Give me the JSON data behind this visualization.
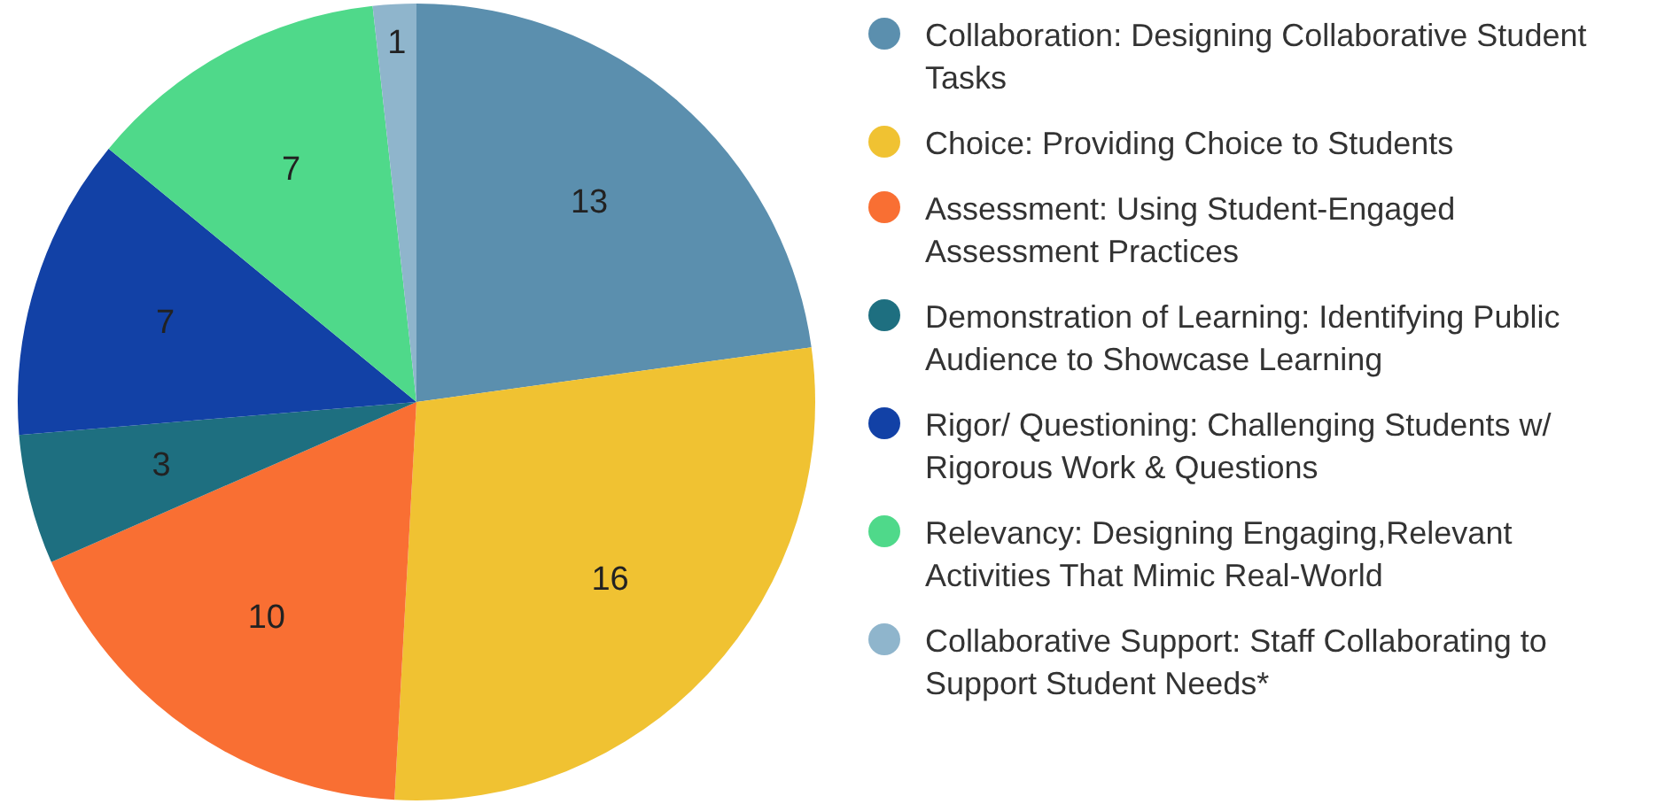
{
  "chart_data": {
    "type": "pie",
    "categories": [
      "Collaboration: Designing Collaborative Student Tasks",
      "Choice: Providing Choice to Students",
      "Assessment: Using Student-Engaged Assessment Practices",
      "Demonstration of Learning: Identifying Public Audience to Showcase Learning",
      "Rigor/ Questioning: Challenging Students w/ Rigorous Work & Questions",
      "Relevancy: Designing Engaging,Relevant Activities That Mimic Real-World",
      "Collaborative Support: Staff Collaborating to Support Student Needs*"
    ],
    "values": [
      13,
      16,
      10,
      3,
      7,
      7,
      1
    ],
    "colors": [
      "#5b8fae",
      "#f0c232",
      "#f96f33",
      "#1e6f80",
      "#1241a6",
      "#4fd98a",
      "#8fb5cc"
    ],
    "data_labels": true,
    "legend": "right"
  }
}
